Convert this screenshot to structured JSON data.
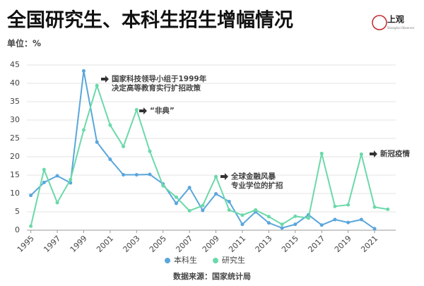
{
  "chart_data": {
    "type": "line",
    "title": "全国研究生、本科生招生增幅情况",
    "unit_label": "单位：%",
    "source": "数据来源：国家统计局",
    "logo": {
      "name": "上观",
      "subtitle": "Shanghai Observer"
    },
    "x": [
      1995,
      1996,
      1997,
      1998,
      1999,
      2000,
      2001,
      2002,
      2003,
      2004,
      2005,
      2006,
      2007,
      2008,
      2009,
      2010,
      2011,
      2012,
      2013,
      2014,
      2015,
      2016,
      2017,
      2018,
      2019,
      2020,
      2021,
      2022
    ],
    "series": [
      {
        "name": "本科生",
        "color": "#5aa6dc",
        "values": [
          9.5,
          13,
          14.8,
          12.9,
          43.4,
          24,
          19.3,
          15.1,
          15.1,
          15.2,
          12.6,
          7.3,
          11.6,
          5.4,
          9.9,
          7.8,
          1.6,
          5.0,
          2.0,
          0.6,
          1.6,
          4.2,
          1.4,
          2.9,
          2.1,
          2.9,
          0.4,
          null
        ]
      },
      {
        "name": "研究生",
        "color": "#6bd9aa",
        "values": [
          1.1,
          16.5,
          7.5,
          13.8,
          27.3,
          39.4,
          28.6,
          22.8,
          32.8,
          21.5,
          12.1,
          9.0,
          5.3,
          6.7,
          14.6,
          5.5,
          4.1,
          5.5,
          3.7,
          1.6,
          3.8,
          3.3,
          20.9,
          6.5,
          6.9,
          20.7,
          6.3,
          5.7
        ]
      }
    ],
    "annotations": [
      {
        "lines": [
          "国家科技领导小组于1999年",
          "决定高等教育实行扩招政策"
        ]
      },
      {
        "lines": [
          "“非典”"
        ]
      },
      {
        "lines": [
          "全球金融风暴",
          "专业学位的扩招"
        ]
      },
      {
        "lines": [
          "新冠疫情"
        ]
      }
    ],
    "xlim": [
      1994.7,
      2022.6
    ],
    "xticks": [
      1995,
      1997,
      1999,
      2001,
      2003,
      2005,
      2007,
      2009,
      2011,
      2013,
      2015,
      2017,
      2019,
      2021
    ],
    "ylim": [
      0,
      45
    ],
    "yticks": [
      0,
      5,
      10,
      15,
      20,
      25,
      30,
      35,
      40,
      45
    ],
    "grid": true,
    "legend": "bottom"
  }
}
